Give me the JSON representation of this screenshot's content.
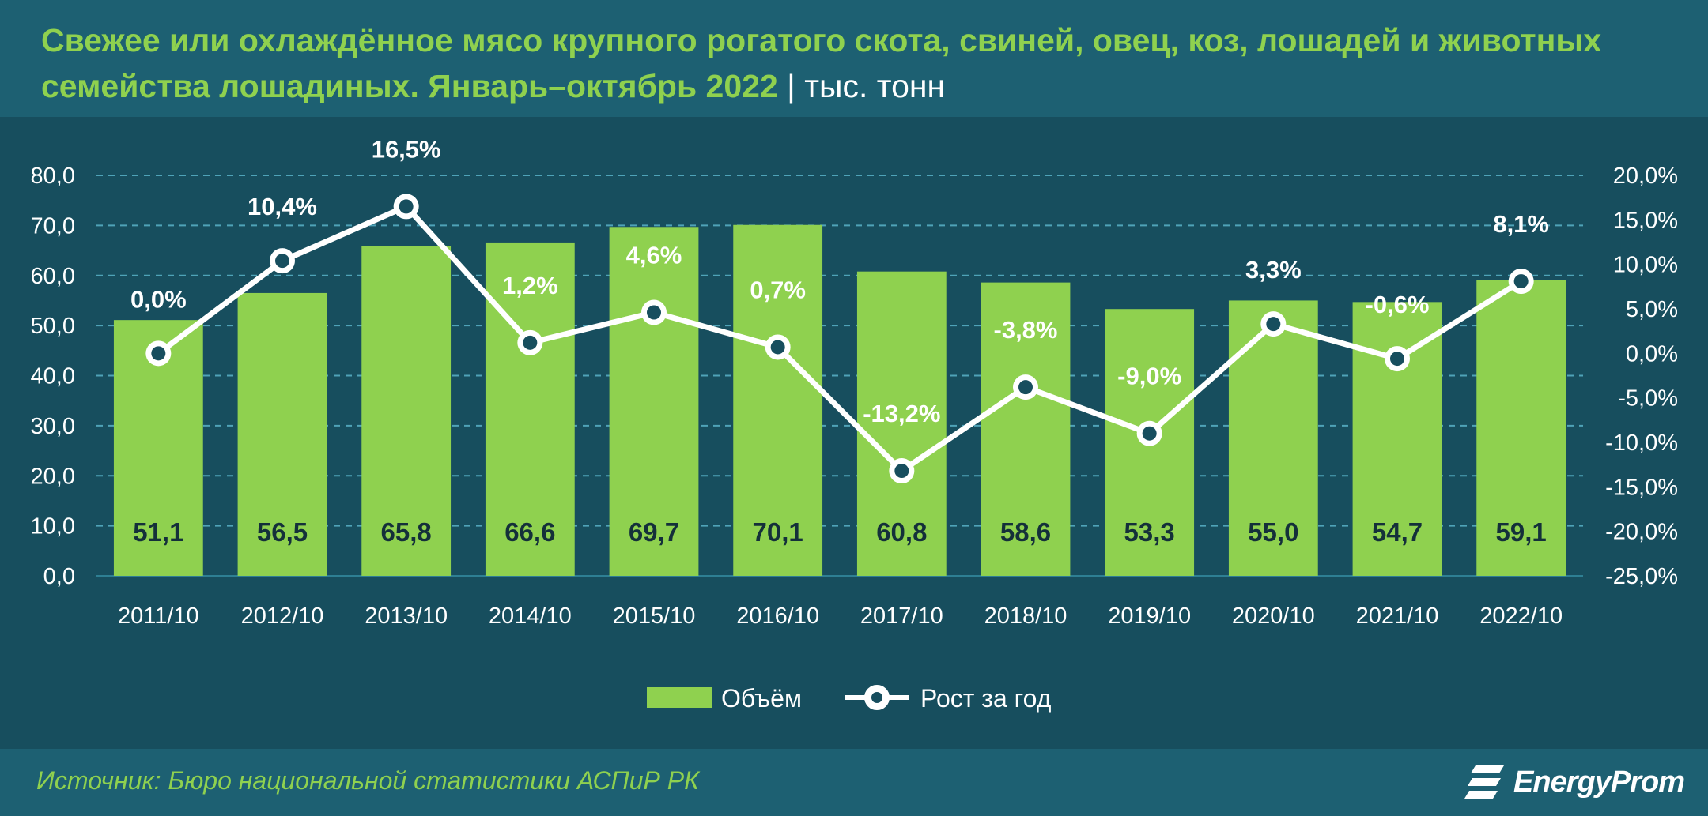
{
  "title": {
    "main": "Свежее или охлаждённое мясо крупного рогатого скота, свиней, овец, коз, лошадей и животных семейства лошадиных. Январь–октябрь 2022",
    "separator": "|",
    "unit": "тыс. тонн"
  },
  "source": "Источник: Бюро национальной статистики АСПиР РК",
  "logo": {
    "text": "EnergyProm",
    "icon": "energyprom-logo-icon"
  },
  "colors": {
    "bar": "#8fd14f",
    "line": "#ffffff",
    "grid": "#4fa3b8",
    "background": "#174e5e"
  },
  "chart_data": {
    "type": "bar",
    "categories": [
      "2011/10",
      "2012/10",
      "2013/10",
      "2014/10",
      "2015/10",
      "2016/10",
      "2017/10",
      "2018/10",
      "2019/10",
      "2020/10",
      "2021/10",
      "2022/10"
    ],
    "series": [
      {
        "name": "Объём",
        "type": "bar",
        "axis": "left",
        "values": [
          51.1,
          56.5,
          65.8,
          66.6,
          69.7,
          70.1,
          60.8,
          58.6,
          53.3,
          55.0,
          54.7,
          59.1
        ],
        "labels": [
          "51,1",
          "56,5",
          "65,8",
          "66,6",
          "69,7",
          "70,1",
          "60,8",
          "58,6",
          "53,3",
          "55,0",
          "54,7",
          "59,1"
        ]
      },
      {
        "name": "Рост за год",
        "type": "line",
        "axis": "right",
        "values": [
          0.0,
          10.4,
          16.5,
          1.2,
          4.6,
          0.7,
          -13.2,
          -3.8,
          -9.0,
          3.3,
          -0.6,
          8.1
        ],
        "labels": [
          "0,0%",
          "10,4%",
          "16,5%",
          "1,2%",
          "4,6%",
          "0,7%",
          "-13,2%",
          "-3,8%",
          "-9,0%",
          "3,3%",
          "-0,6%",
          "8,1%"
        ]
      }
    ],
    "y_left": {
      "ylim": [
        0,
        80
      ],
      "ticks": [
        "0,0",
        "10,0",
        "20,0",
        "30,0",
        "40,0",
        "50,0",
        "60,0",
        "70,0",
        "80,0"
      ]
    },
    "y_right": {
      "ylim": [
        -25,
        20
      ],
      "ticks": [
        "-25,0%",
        "-20,0%",
        "-15,0%",
        "-10,0%",
        "-5,0%",
        "0,0%",
        "5,0%",
        "10,0%",
        "15,0%",
        "20,0%"
      ]
    },
    "grid": true,
    "legend_position": "bottom"
  }
}
